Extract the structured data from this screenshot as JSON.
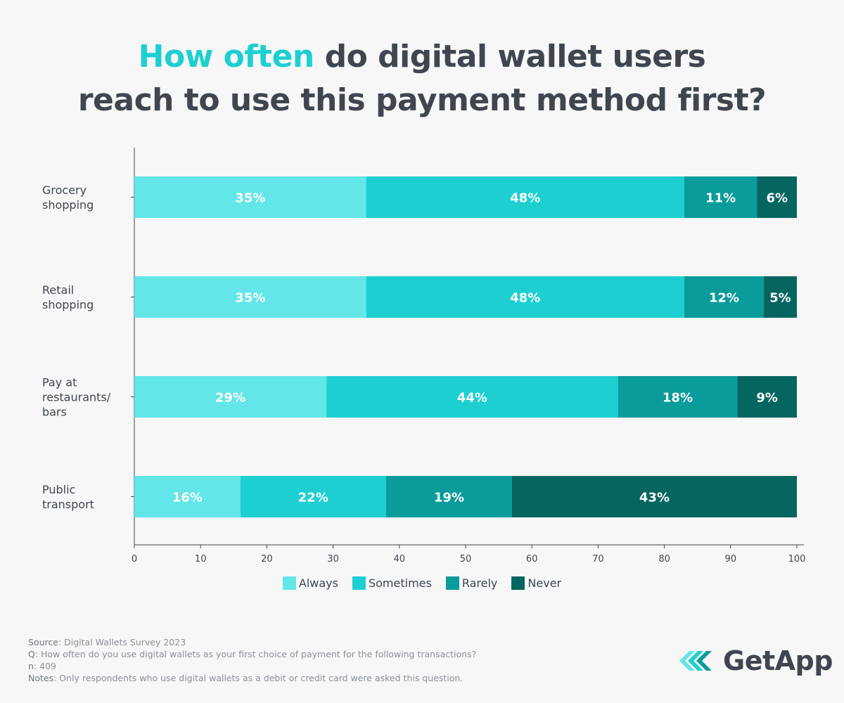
{
  "title": {
    "accent": "How often",
    "rest_line1": "do digital wallet users",
    "line2": "reach to use this payment method first?"
  },
  "colors": {
    "accent": "#1dcfd1",
    "text": "#3f4650",
    "series": [
      "#62e6e8",
      "#1dcfd1",
      "#0a9b9b",
      "#05655f"
    ]
  },
  "chart_data": {
    "type": "bar",
    "orientation": "horizontal",
    "stacked": true,
    "categories": [
      [
        "Grocery",
        "shopping"
      ],
      [
        "Retail",
        "shopping"
      ],
      [
        "Pay at",
        "restaurants/",
        "bars"
      ],
      [
        "Public",
        "transport"
      ]
    ],
    "series": [
      {
        "name": "Always",
        "values": [
          35,
          35,
          29,
          16
        ]
      },
      {
        "name": "Sometimes",
        "values": [
          48,
          48,
          44,
          22
        ]
      },
      {
        "name": "Rarely",
        "values": [
          11,
          12,
          18,
          19
        ]
      },
      {
        "name": "Never",
        "values": [
          6,
          5,
          9,
          43
        ]
      }
    ],
    "xlim": [
      0,
      100
    ],
    "xticks": [
      0,
      10,
      20,
      30,
      40,
      50,
      60,
      70,
      80,
      90,
      100
    ],
    "value_suffix": "%",
    "legend": "bottom-center",
    "grid": false
  },
  "footer": {
    "source_key": "Source",
    "source_val": ": Digital Wallets Survey 2023",
    "q_key": "Q",
    "q_val": ": How often do you use digital wallets as your first choice of payment for the following transactions?",
    "n_key": "n",
    "n_val": ": 409",
    "notes_key": "Notes",
    "notes_val": ": Only respondents who use digital wallets as a debit or credit card were asked this question."
  },
  "logo": {
    "text": "GetApp",
    "icon": "getapp-chevrons-icon"
  }
}
